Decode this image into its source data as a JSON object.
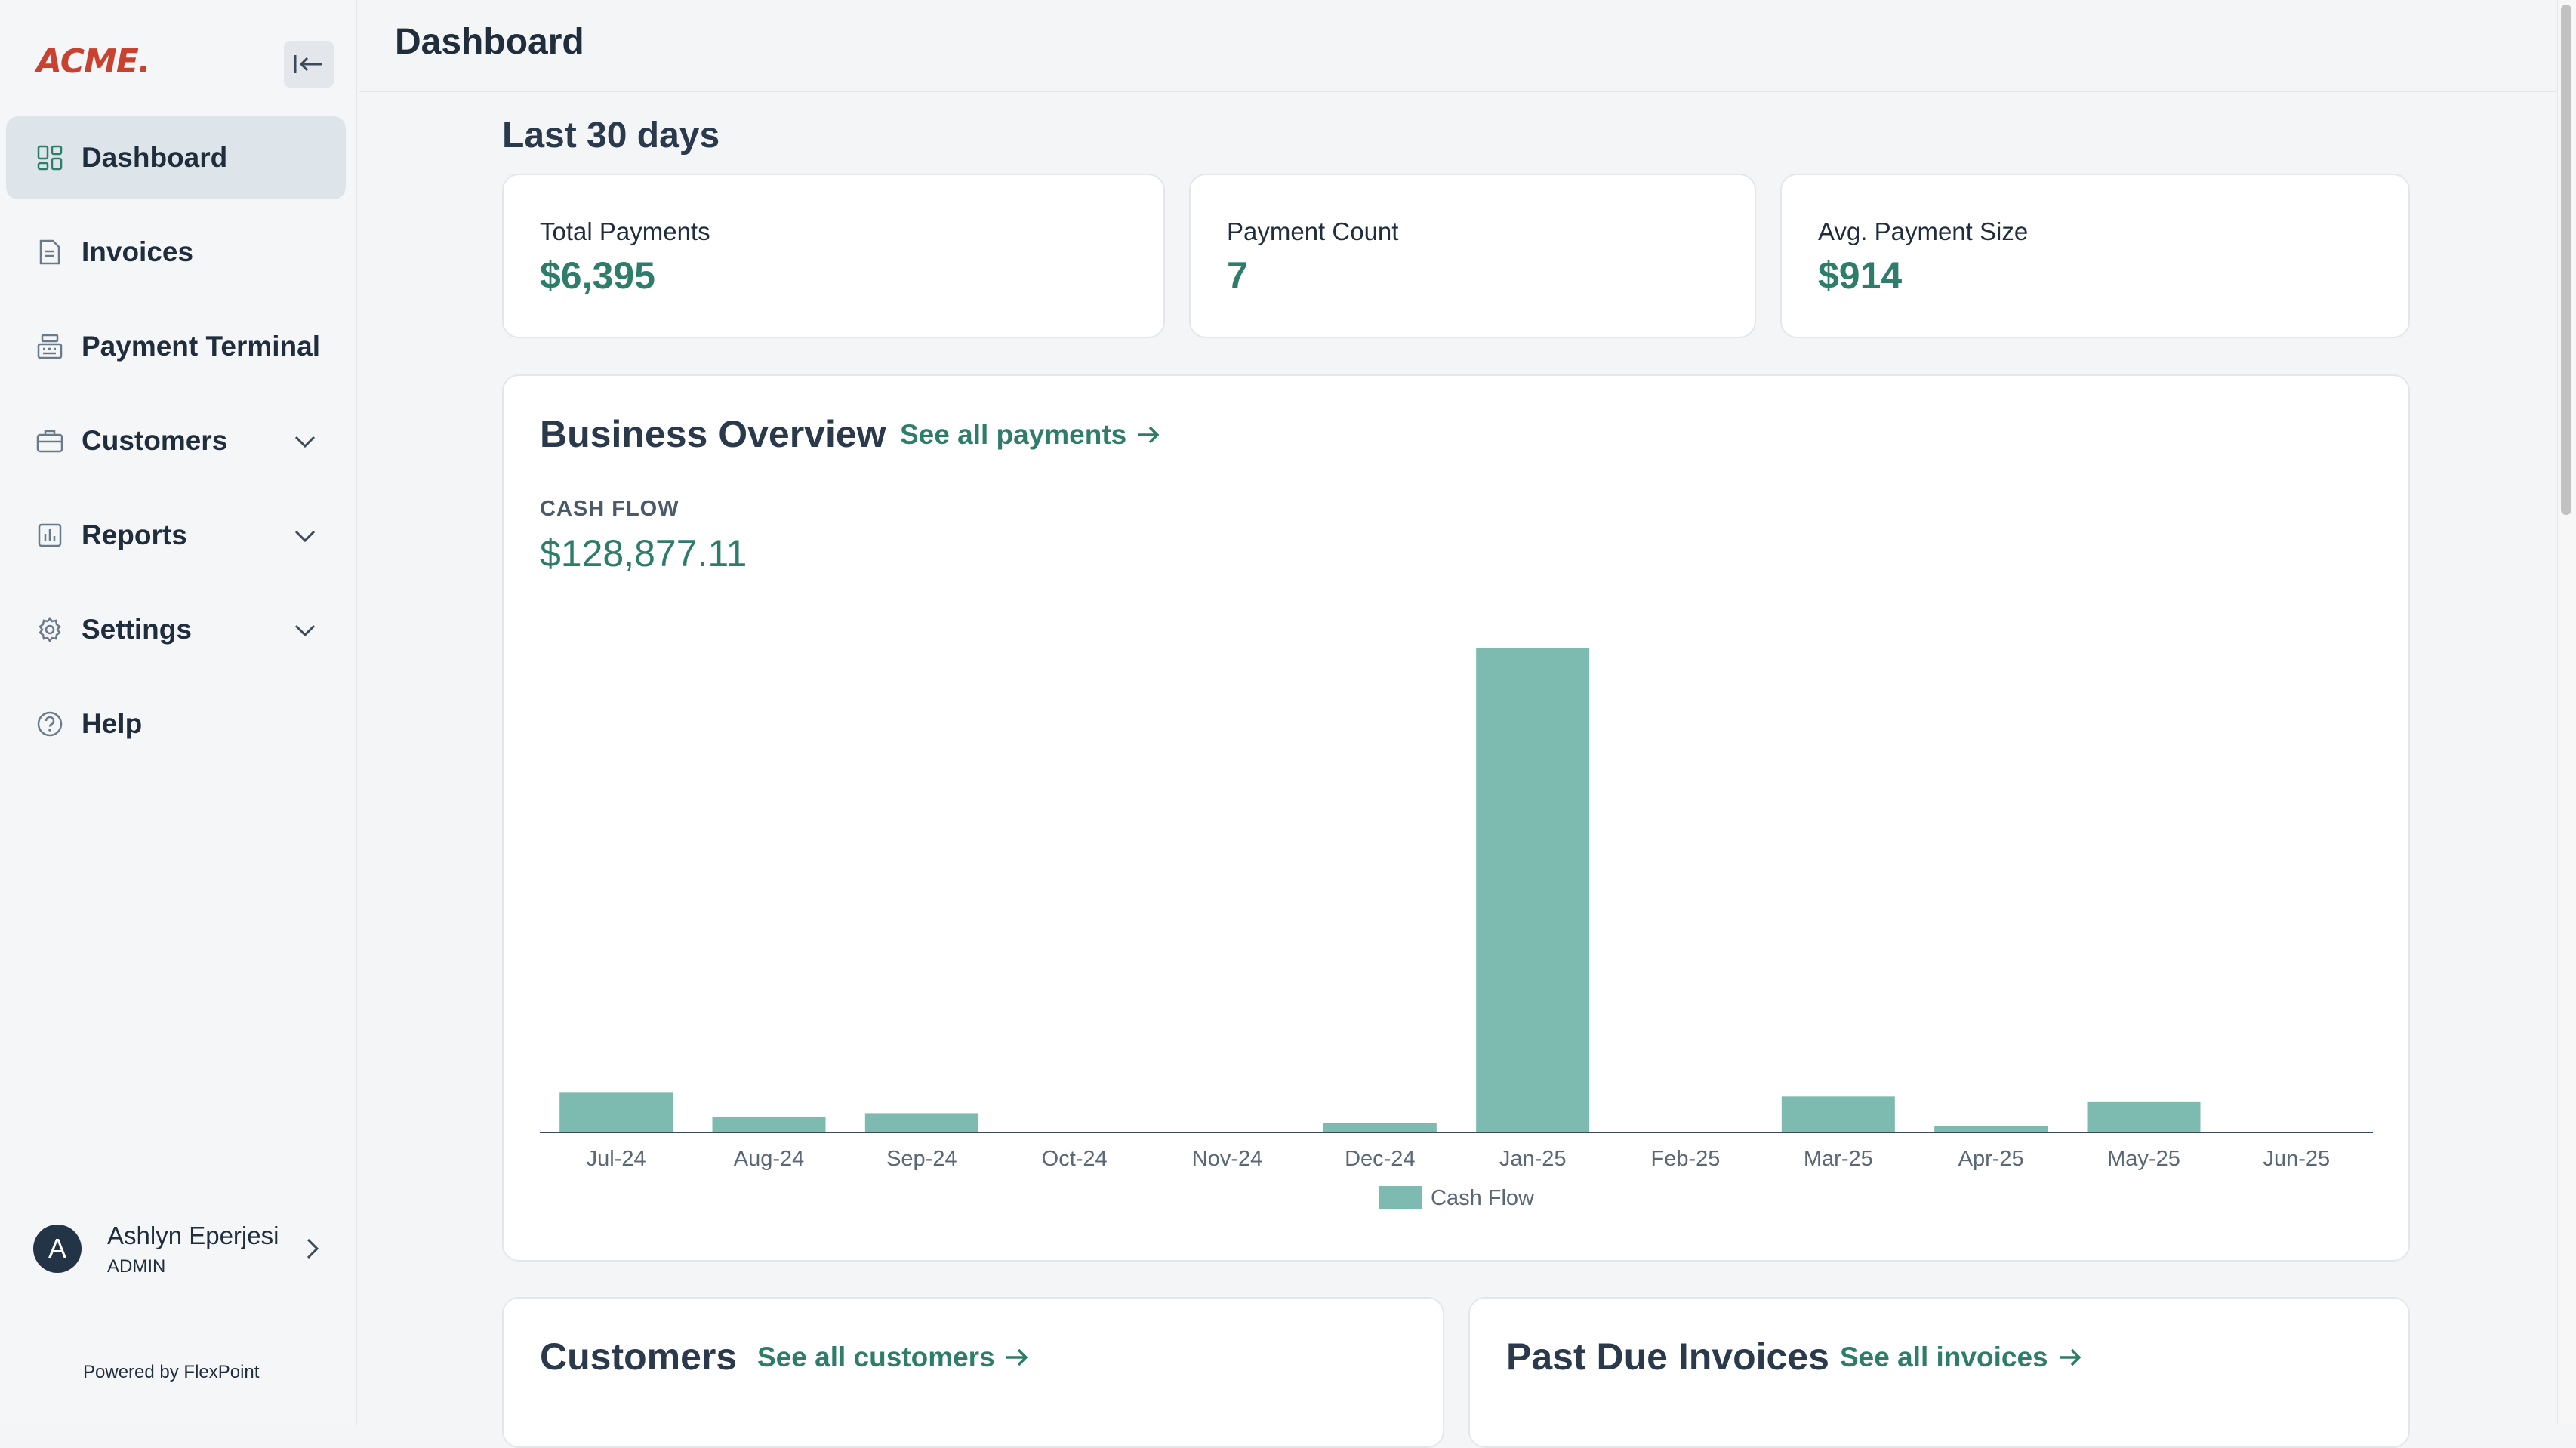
{
  "sidebar": {
    "logo": "ACME.",
    "items": [
      {
        "label": "Dashboard"
      },
      {
        "label": "Invoices"
      },
      {
        "label": "Payment Terminal"
      },
      {
        "label": "Customers"
      },
      {
        "label": "Reports"
      },
      {
        "label": "Settings"
      },
      {
        "label": "Help"
      }
    ],
    "user": {
      "initial": "A",
      "name": "Ashlyn Eperjesi",
      "role": "ADMIN"
    },
    "powered_by": "Powered by FlexPoint"
  },
  "header": {
    "title": "Dashboard"
  },
  "main": {
    "period_title": "Last 30 days",
    "stats": [
      {
        "label": "Total Payments",
        "value": "$6,395"
      },
      {
        "label": "Payment Count",
        "value": "7"
      },
      {
        "label": "Avg. Payment Size",
        "value": "$914"
      }
    ],
    "overview": {
      "title": "Business Overview",
      "link": "See all payments",
      "cash_label": "CASH FLOW",
      "cash_value": "$128,877.11"
    },
    "customers": {
      "title": "Customers",
      "link": "See all customers"
    },
    "past_due": {
      "title": "Past Due Invoices",
      "link": "See all invoices"
    }
  },
  "colors": {
    "accent": "#2e7d6b",
    "bar": "#7dbab0",
    "brand": "#c9412f"
  },
  "chart_data": {
    "type": "bar",
    "categories": [
      "Jul-24",
      "Aug-24",
      "Sep-24",
      "Oct-24",
      "Nov-24",
      "Dec-24",
      "Jan-25",
      "Feb-25",
      "Mar-25",
      "Apr-25",
      "May-25",
      "Jun-25"
    ],
    "series": [
      {
        "name": "Cash Flow",
        "values": [
          10500,
          4200,
          5100,
          0,
          0,
          2600,
          128000,
          0,
          9500,
          1800,
          8000,
          0
        ]
      }
    ],
    "ylim": [
      0,
      128000
    ],
    "legend": "bottom-center",
    "grid": false
  }
}
